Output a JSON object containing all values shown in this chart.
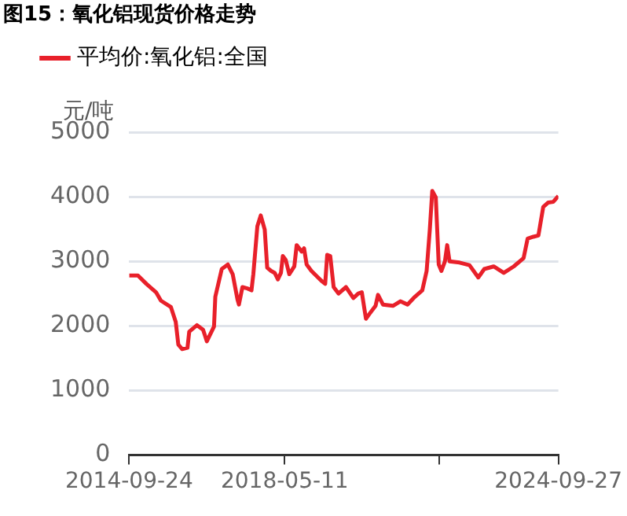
{
  "chart_data": {
    "type": "line",
    "title": "图15：氧化铝现货价格走势",
    "ylabel": "元/吨",
    "legend": "top left",
    "grid": "y",
    "marker": "none",
    "line_style": "solid",
    "xlim": [
      "2014-09-24",
      "2024-09-27"
    ],
    "xticks": [
      "2014-09-24",
      "2018-05-11",
      {
        "value": "2021-12-20",
        "label": null
      },
      "2024-09-27"
    ],
    "ylim": [
      0,
      5000
    ],
    "yticks": [
      0,
      1000,
      2000,
      3000,
      4000,
      5000
    ],
    "series": [
      {
        "name": "平均价:氧化铝:全国",
        "color": "#e8202a",
        "x": [
          "2014-09-24",
          "2014-12-08",
          "2015-02-18",
          "2015-05-11",
          "2015-06-22",
          "2015-09-15",
          "2015-10-26",
          "2015-11-17",
          "2015-12-20",
          "2016-02-03",
          "2016-02-18",
          "2016-04-24",
          "2016-06-15",
          "2016-07-17",
          "2016-09-16",
          "2016-09-27",
          "2016-11-21",
          "2017-01-12",
          "2017-02-22",
          "2017-04-05",
          "2017-04-16",
          "2017-05-16",
          "2017-06-26",
          "2017-08-01",
          "2017-08-17",
          "2017-09-20",
          "2017-10-19",
          "2017-11-22",
          "2017-12-13",
          "2018-01-16",
          "2018-02-15",
          "2018-03-14",
          "2018-04-09",
          "2018-04-25",
          "2018-05-20",
          "2018-06-19",
          "2018-08-01",
          "2018-08-21",
          "2018-10-03",
          "2018-10-23",
          "2018-11-14",
          "2018-12-25",
          "2019-03-18",
          "2019-04-21",
          "2019-05-08",
          "2019-06-03",
          "2019-07-02",
          "2019-08-13",
          "2019-10-15",
          "2019-12-17",
          "2020-01-28",
          "2020-02-27",
          "2020-04-02",
          "2020-05-04",
          "2020-06-23",
          "2020-07-14",
          "2020-08-25",
          "2020-11-18",
          "2021-01-20",
          "2021-03-22",
          "2021-05-24",
          "2021-07-26",
          "2021-09-01",
          "2021-09-28",
          "2021-10-19",
          "2021-11-18",
          "2021-12-13",
          "2022-01-05",
          "2022-02-04",
          "2022-02-23",
          "2022-03-15",
          "2022-06-08",
          "2022-09-01",
          "2022-11-15",
          "2023-01-05",
          "2023-03-26",
          "2023-06-20",
          "2023-09-13",
          "2023-12-06",
          "2024-01-09",
          "2024-02-27",
          "2024-04-10",
          "2024-05-21",
          "2024-07-03",
          "2024-08-14",
          "2024-09-27"
        ],
        "values": [
          2780,
          2780,
          2650,
          2520,
          2390,
          2290,
          2060,
          1710,
          1640,
          1660,
          1910,
          2010,
          1940,
          1760,
          1990,
          2450,
          2880,
          2950,
          2800,
          2400,
          2330,
          2600,
          2580,
          2550,
          2800,
          3540,
          3710,
          3490,
          2900,
          2850,
          2820,
          2720,
          2820,
          3080,
          3020,
          2800,
          2920,
          3250,
          3150,
          3200,
          2950,
          2850,
          2700,
          2650,
          3100,
          3080,
          2600,
          2500,
          2600,
          2430,
          2500,
          2520,
          2110,
          2190,
          2310,
          2480,
          2330,
          2310,
          2380,
          2330,
          2450,
          2550,
          2850,
          3490,
          4090,
          3990,
          2950,
          2850,
          3000,
          3250,
          3000,
          2980,
          2940,
          2750,
          2880,
          2920,
          2820,
          2920,
          3050,
          3350,
          3380,
          3400,
          3840,
          3910,
          3920,
          4010
        ]
      }
    ]
  }
}
